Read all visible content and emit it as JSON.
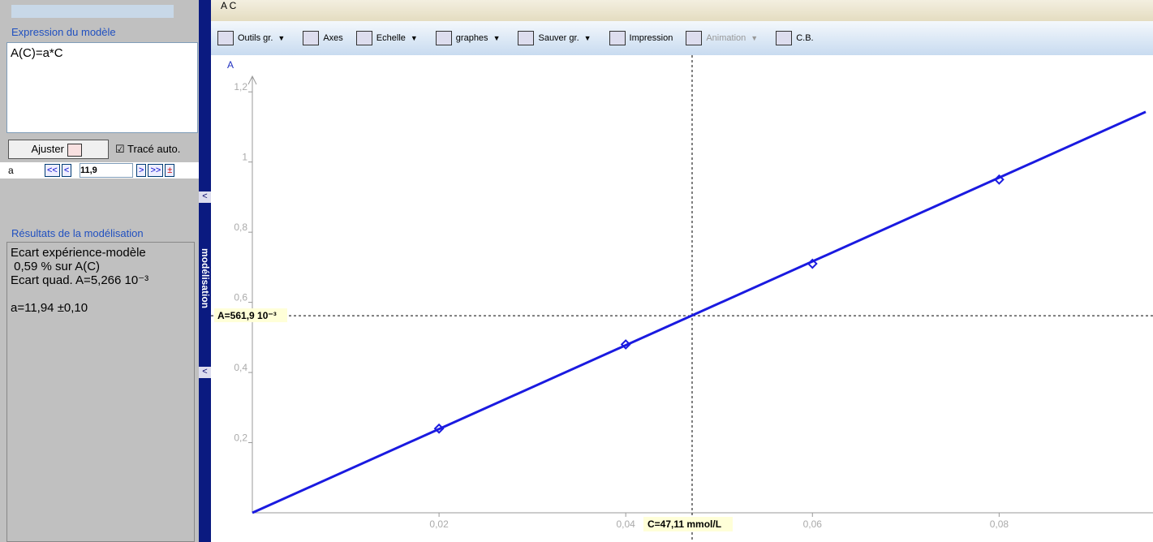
{
  "left_panel": {
    "model_title": "Expression du modèle",
    "model_expression": "A(C)=a*C",
    "fit_button": "Ajuster",
    "auto_trace": "Tracé auto.",
    "param_name": "a",
    "param_buttons_left": [
      "<<",
      "<"
    ],
    "param_value": "11,9",
    "param_buttons_right": [
      ">",
      ">>",
      "±"
    ],
    "results_title": "Résultats de la modélisation",
    "results": [
      "Ecart expérience-modèle",
      " 0,59 % sur A(C)",
      "Ecart quad. A=5,266 10⁻³",
      "",
      "a=11,94 ±0,10"
    ],
    "side_tab": "modélisation"
  },
  "tab_header": "A  C",
  "toolbar": [
    "Outils gr.",
    "Axes",
    "Echelle",
    "graphes",
    "Sauver gr.",
    "Impression",
    "Animation",
    "C.B."
  ],
  "chart_data": {
    "type": "line",
    "y_label": "A",
    "xlim": [
      0,
      0.0957
    ],
    "ylim": [
      0,
      1.3
    ],
    "xticks": [
      {
        "value": 0.02,
        "label": "0,02"
      },
      {
        "value": 0.04,
        "label": "0,04"
      },
      {
        "value": 0.06,
        "label": "0,06"
      },
      {
        "value": 0.08,
        "label": "0,08"
      }
    ],
    "yticks": [
      {
        "value": 0.2,
        "label": "0,2"
      },
      {
        "value": 0.4,
        "label": "0,4"
      },
      {
        "value": 0.6,
        "label": "0,6"
      },
      {
        "value": 0.8,
        "label": "0,8"
      },
      {
        "value": 1,
        "label": "1"
      },
      {
        "value": 1.2,
        "label": "1,2"
      }
    ],
    "series": [
      {
        "color": "#1a1ae0",
        "x": [
          0,
          0.0957
        ],
        "values": [
          0,
          1.143
        ]
      },
      {
        "color": "#1a1ae0",
        "x": [
          0.02,
          0.04,
          0.06,
          0.08
        ],
        "values": [
          0.24,
          0.48,
          0.71,
          0.95
        ]
      }
    ],
    "cursor": {
      "x": 0.04711,
      "y": 0.5619,
      "x_label": "C=47,11 mmol/L",
      "y_label": "A=561,9 10⁻³"
    }
  }
}
